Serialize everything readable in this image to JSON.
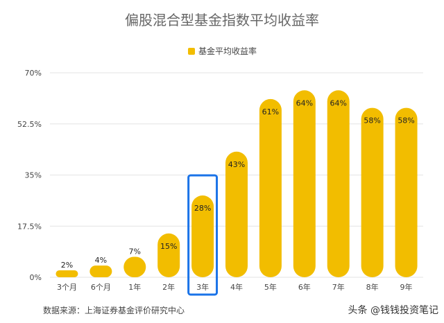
{
  "chart_data": {
    "type": "bar",
    "title": "偏股混合型基金指数平均收益率",
    "legend": {
      "label": "基金平均收益率",
      "position": "top-center"
    },
    "categories": [
      "3个月",
      "6个月",
      "1年",
      "2年",
      "3年",
      "4年",
      "5年",
      "6年",
      "7年",
      "8年",
      "9年"
    ],
    "series": [
      {
        "name": "基金平均收益率",
        "values": [
          2,
          4,
          7,
          15,
          28,
          43,
          61,
          64,
          64,
          58,
          58
        ]
      }
    ],
    "value_labels": [
      "2%",
      "4%",
      "7%",
      "15%",
      "28%",
      "43%",
      "61%",
      "64%",
      "64%",
      "58%",
      "58%"
    ],
    "yticks": [
      "0%",
      "17.5%",
      "35%",
      "52.5%",
      "70%"
    ],
    "ytick_values": [
      0,
      17.5,
      35,
      52.5,
      70
    ],
    "ylim": [
      0,
      70
    ],
    "grid": true,
    "highlighted_category": "3年",
    "colors": {
      "bar": "#f2bd00",
      "highlight_box": "#1a73e8",
      "grid": "#e3e3e3",
      "text": "#444444"
    }
  },
  "source_note": "数据来源：上海证券基金评价研究中心",
  "watermark": "头条 @钱钱投资笔记"
}
